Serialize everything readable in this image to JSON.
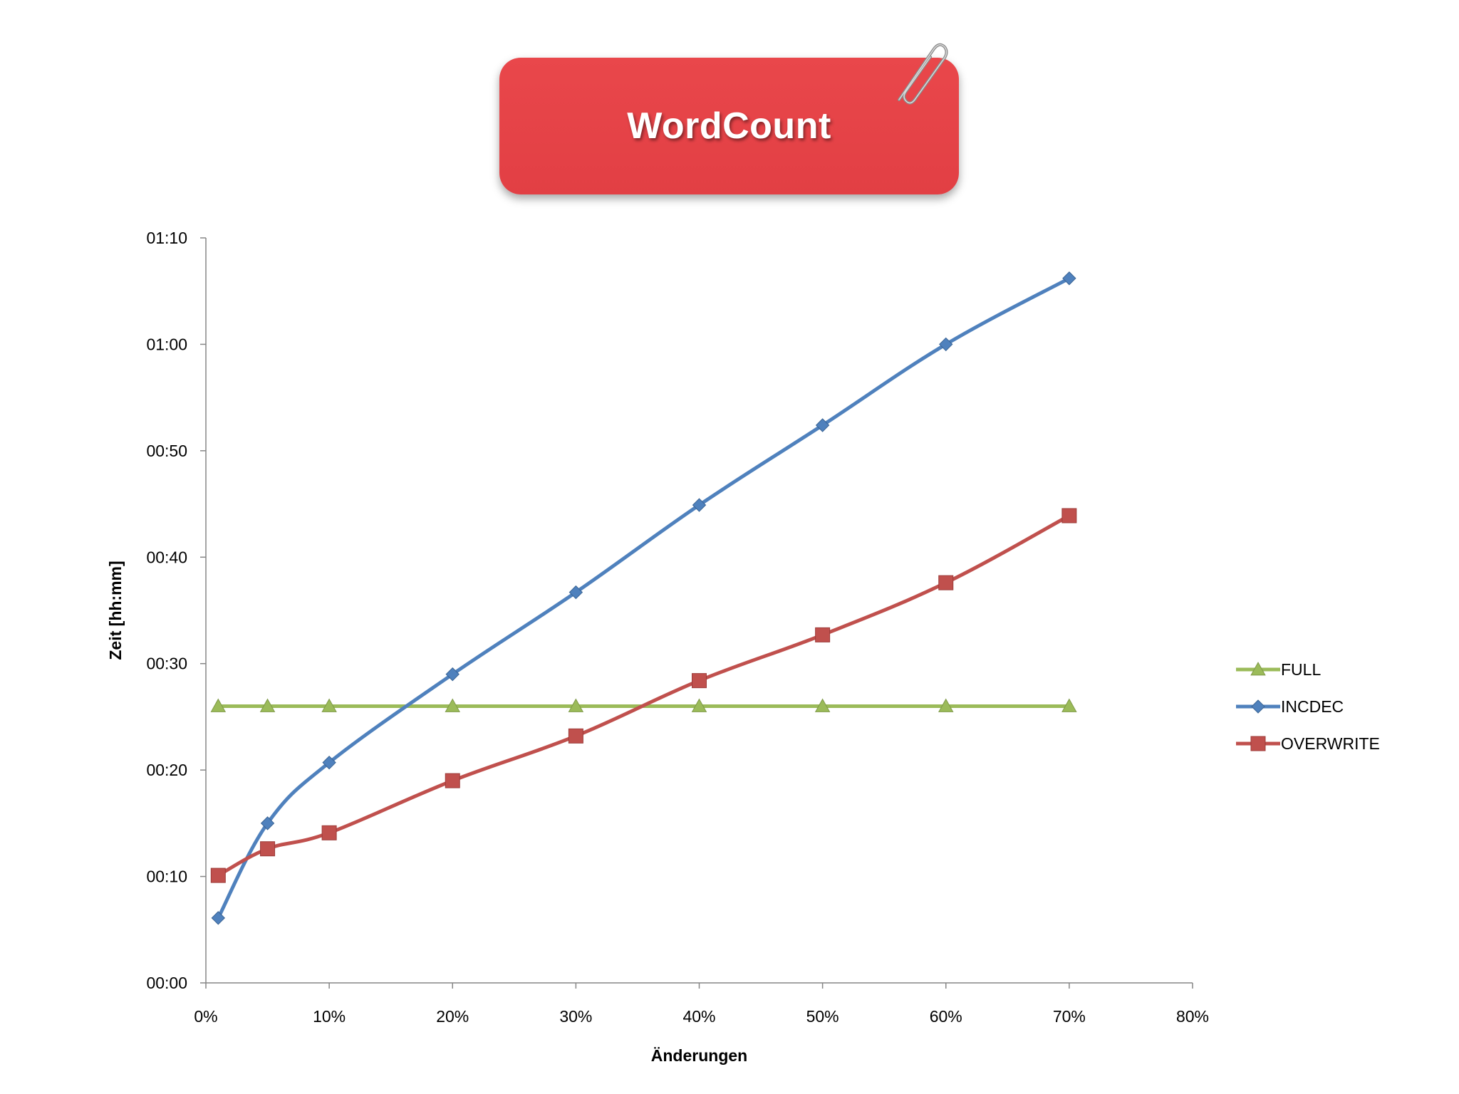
{
  "title": "WordCount",
  "chart_data": {
    "type": "line",
    "title": "WordCount",
    "xlabel": "Änderungen",
    "ylabel": "Zeit [hh:mm]",
    "x_ticks": [
      "0%",
      "10%",
      "20%",
      "30%",
      "40%",
      "50%",
      "60%",
      "70%",
      "80%"
    ],
    "y_ticks": [
      "00:00",
      "00:10",
      "00:20",
      "00:30",
      "00:40",
      "00:50",
      "01:00",
      "01:10"
    ],
    "xlim": [
      0,
      80
    ],
    "ylim": [
      0,
      70
    ],
    "x_unit": "percent",
    "y_unit": "minutes",
    "grid": false,
    "legend_position": "right",
    "series": [
      {
        "name": "FULL",
        "color": "#9bbb59",
        "marker": "triangle",
        "points": [
          [
            1,
            26
          ],
          [
            5,
            26
          ],
          [
            10,
            26
          ],
          [
            20,
            26
          ],
          [
            30,
            26
          ],
          [
            40,
            26
          ],
          [
            50,
            26
          ],
          [
            60,
            26
          ],
          [
            70,
            26
          ]
        ]
      },
      {
        "name": "INCDEC",
        "color": "#4f81bd",
        "marker": "diamond",
        "points": [
          [
            1,
            6.1
          ],
          [
            5,
            15
          ],
          [
            10,
            20.7
          ],
          [
            20,
            29
          ],
          [
            30,
            36.7
          ],
          [
            40,
            44.9
          ],
          [
            50,
            52.4
          ],
          [
            60,
            60
          ],
          [
            70,
            66.2
          ]
        ]
      },
      {
        "name": "OVERWRITE",
        "color": "#c0504d",
        "marker": "square",
        "points": [
          [
            1,
            10.1
          ],
          [
            5,
            12.6
          ],
          [
            10,
            14.1
          ],
          [
            20,
            19
          ],
          [
            30,
            23.2
          ],
          [
            40,
            28.4
          ],
          [
            50,
            32.7
          ],
          [
            60,
            37.6
          ],
          [
            70,
            43.9
          ]
        ]
      }
    ]
  }
}
